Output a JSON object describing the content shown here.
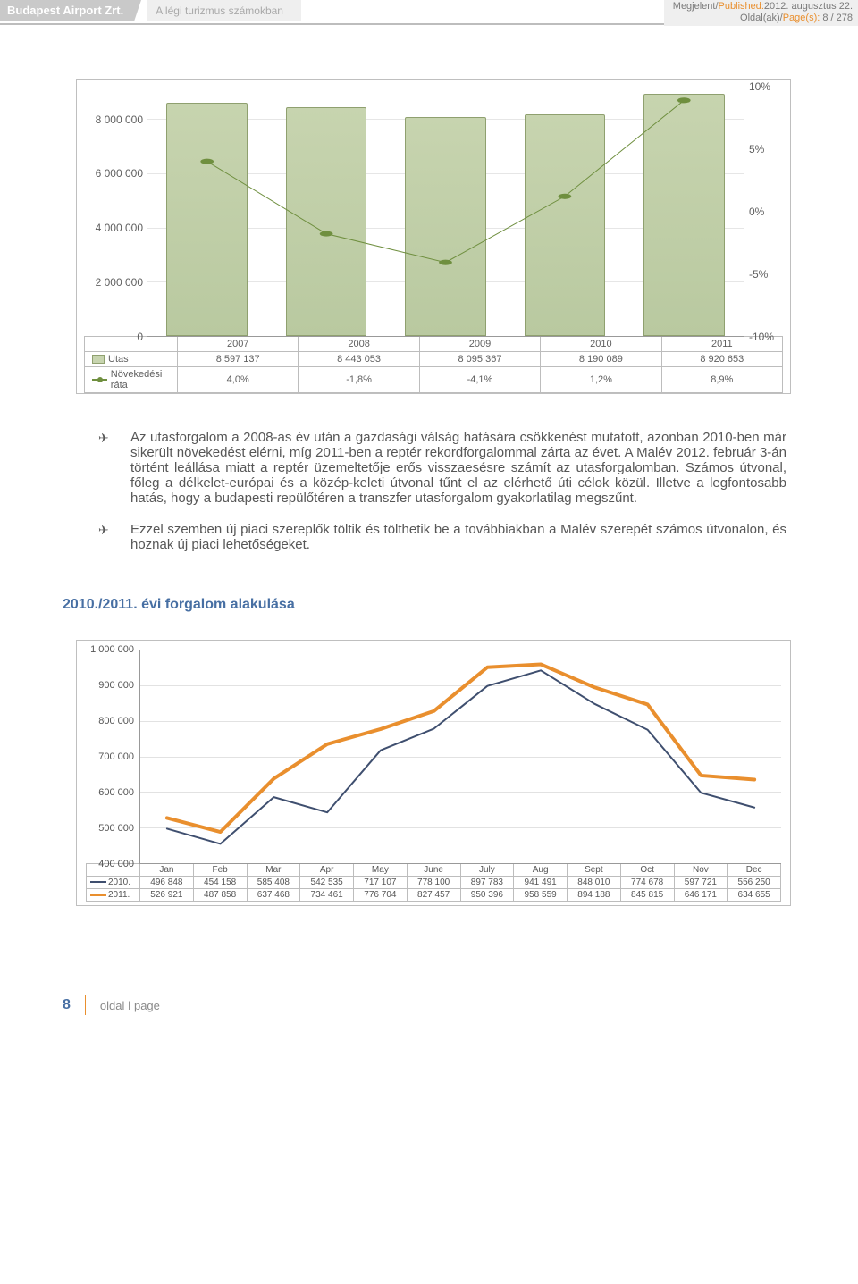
{
  "header": {
    "left_tab": "Budapest Airport Zrt.",
    "mid_tab": "A légi turizmus számokban",
    "published_label": "Megjelent/",
    "published_label_en": "Published:",
    "published_value": "2012. augusztus 22.",
    "pages_label": "Oldal(ak)/",
    "pages_label_en": "Page(s): ",
    "pages_value": "8 / 278"
  },
  "chart1": {
    "type": "bar+line",
    "categories": [
      "2007",
      "2008",
      "2009",
      "2010",
      "2011"
    ],
    "bar_series_label": "Utas",
    "bar_values": [
      8597137,
      8443053,
      8095367,
      8190089,
      8920653
    ],
    "bar_display": [
      "8 597 137",
      "8 443 053",
      "8 095 367",
      "8 190 089",
      "8 920 653"
    ],
    "line_series_label": "Növekedési ráta",
    "line_values": [
      4.0,
      -1.8,
      -4.1,
      1.2,
      8.9
    ],
    "line_display": [
      "4,0%",
      "-1,8%",
      "-4,1%",
      "1,2%",
      "8,9%"
    ],
    "left_axis": {
      "min": 0,
      "max": 8000000,
      "ticks": [
        0,
        2000000,
        4000000,
        6000000,
        8000000
      ],
      "tick_labels": [
        "0",
        "2 000 000",
        "4 000 000",
        "6 000 000",
        "8 000 000"
      ]
    },
    "right_axis": {
      "min": -10,
      "max": 10,
      "ticks": [
        -10,
        -5,
        0,
        5,
        10
      ],
      "tick_labels": [
        "-10%",
        "-5%",
        "0%",
        "5%",
        "10%"
      ]
    },
    "bar_fill": "#c7d4af",
    "bar_stroke": "#8fa06f",
    "line_color": "#6f8f3f",
    "marker_size": 6,
    "grid_color": "#e6e6e6",
    "plot_bg": "#ffffff",
    "font_size": 12
  },
  "paragraphs": {
    "p1": "Az utasforgalom a 2008-as év után a gazdasági válság hatására csökkenést mutatott, azonban 2010-ben már sikerült növekedést elérni, míg 2011-ben a reptér rekordforgalommal zárta az évet. A Malév 2012. február 3-án történt leállása miatt a reptér üzemeltetője erős visszaesésre számít az utasforgalomban. Számos útvonal, főleg a délkelet-európai és a közép-keleti útvonal tűnt el az elérhető úti célok közül. Illetve a legfontosabb hatás, hogy a budapesti repülőtéren a transzfer utasforgalom gyakorlatilag megszűnt.",
    "p2": "Ezzel szemben új piaci szereplők töltik és tölthetik be a továbbiakban a Malév szerepét számos útvonalon, és hoznak új piaci lehetőségeket."
  },
  "subheading": "2010./2011. évi forgalom alakulása",
  "chart2": {
    "type": "line",
    "months": [
      "Jan",
      "Feb",
      "Mar",
      "Apr",
      "May",
      "June",
      "July",
      "Aug",
      "Sept",
      "Oct",
      "Nov",
      "Dec"
    ],
    "series": [
      {
        "label": "2010.",
        "color": "#3f4f6f",
        "width": 2,
        "values": [
          496848,
          454158,
          585408,
          542535,
          717107,
          778100,
          897783,
          941491,
          848010,
          774678,
          597721,
          556250
        ],
        "display": [
          "496 848",
          "454 158",
          "585 408",
          "542 535",
          "717 107",
          "778 100",
          "897 783",
          "941 491",
          "848 010",
          "774 678",
          "597 721",
          "556 250"
        ]
      },
      {
        "label": "2011.",
        "color": "#e98f2e",
        "width": 4,
        "values": [
          526921,
          487858,
          637468,
          734461,
          776704,
          827457,
          950396,
          958559,
          894188,
          845815,
          646171,
          634655
        ],
        "display": [
          "526 921",
          "487 858",
          "637 468",
          "734 461",
          "776 704",
          "827 457",
          "950 396",
          "958 559",
          "894 188",
          "845 815",
          "646 171",
          "634 655"
        ]
      }
    ],
    "y_axis": {
      "min": 400000,
      "max": 1000000,
      "ticks": [
        400000,
        500000,
        600000,
        700000,
        800000,
        900000,
        1000000
      ],
      "tick_labels": [
        "400 000",
        "500 000",
        "600 000",
        "700 000",
        "800 000",
        "900 000",
        "1 000 000"
      ]
    },
    "grid_color": "#e2e2e2",
    "plot_bg": "#ffffff",
    "font_size": 11
  },
  "footer": {
    "page_number": "8",
    "text": "oldal ǀ page"
  }
}
